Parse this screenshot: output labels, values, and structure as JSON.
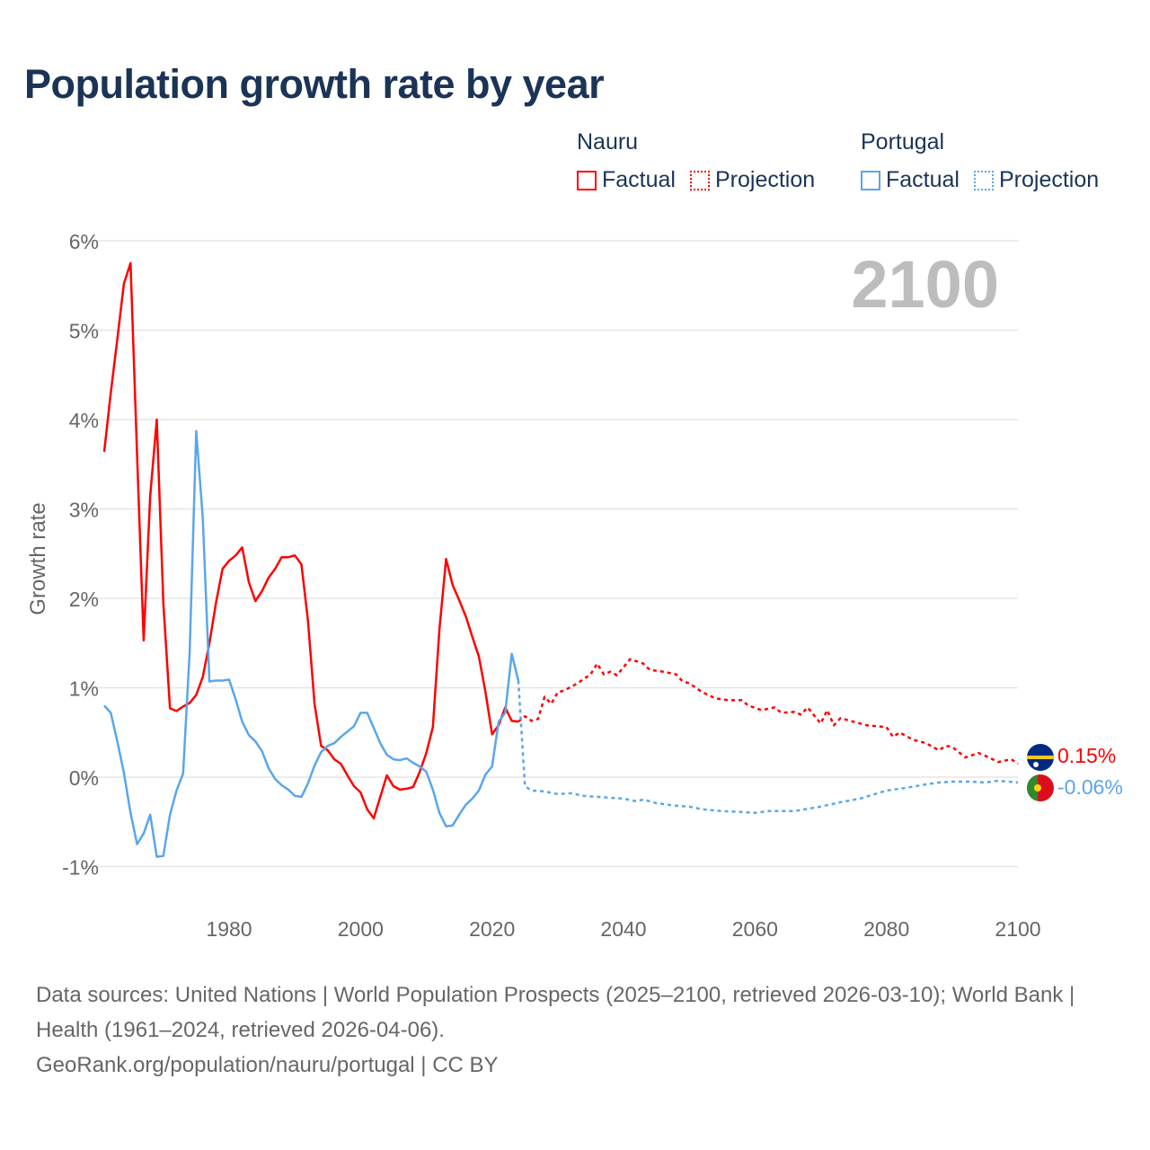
{
  "title": "Population growth rate by year",
  "legend": {
    "groups": [
      {
        "name": "Nauru",
        "factual": "Factual",
        "projection": "Projection",
        "color": "#ff0000"
      },
      {
        "name": "Portugal",
        "factual": "Factual",
        "projection": "Projection",
        "color": "#5aa6ea"
      }
    ]
  },
  "current_year": "2100",
  "end_labels": {
    "nauru": "0.15%",
    "portugal": "-0.06%"
  },
  "footer": {
    "sources": "Data sources: United Nations | World Population Prospects (2025–2100, retrieved 2026-03-10); World Bank | Health (1961–2024, retrieved 2026-04-06).",
    "link": "GeoRank.org/population/nauru/portugal | CC BY"
  },
  "chart_data": {
    "type": "line",
    "title": "Population growth rate by year",
    "xlabel": "",
    "ylabel": "Growth rate",
    "xlim": [
      1961,
      2100
    ],
    "ylim": [
      -1,
      6
    ],
    "xticks": [
      1980,
      2000,
      2020,
      2040,
      2060,
      2080,
      2100
    ],
    "yticks": [
      -1,
      0,
      1,
      2,
      3,
      4,
      5,
      6
    ],
    "ytick_labels": [
      "-1%",
      "0%",
      "1%",
      "2%",
      "3%",
      "4%",
      "5%",
      "6%"
    ],
    "xtick_labels": [
      "1980",
      "2000",
      "2020",
      "2040",
      "2060",
      "2080",
      "2100"
    ],
    "grid": true,
    "series": [
      {
        "name": "Nauru Factual",
        "color": "#ff0000",
        "style": "solid",
        "x0": 1961,
        "values": [
          3.64,
          4.3,
          4.9,
          5.52,
          5.75,
          3.6,
          1.53,
          3.15,
          4.0,
          1.95,
          0.77,
          0.74,
          0.79,
          0.83,
          0.92,
          1.12,
          1.5,
          1.95,
          2.33,
          2.42,
          2.48,
          2.57,
          2.18,
          1.97,
          2.08,
          2.23,
          2.33,
          2.46,
          2.46,
          2.48,
          2.38,
          1.75,
          0.82,
          0.35,
          0.3,
          0.2,
          0.15,
          0.02,
          -0.1,
          -0.17,
          -0.36,
          -0.46,
          -0.22,
          0.02,
          -0.1,
          -0.14,
          -0.13,
          -0.11,
          0.06,
          0.27,
          0.56,
          1.65,
          2.44,
          2.15,
          1.98,
          1.8,
          1.57,
          1.35,
          0.95,
          0.48,
          0.58,
          0.78,
          0.63,
          0.62
        ]
      },
      {
        "name": "Nauru Projection",
        "color": "#ff0000",
        "style": "dotted",
        "points": [
          [
            2024,
            0.62
          ],
          [
            2025,
            0.68
          ],
          [
            2026,
            0.63
          ],
          [
            2027,
            0.65
          ],
          [
            2028,
            0.9
          ],
          [
            2029,
            0.82
          ],
          [
            2030,
            0.95
          ],
          [
            2031,
            0.97
          ],
          [
            2033,
            1.05
          ],
          [
            2035,
            1.15
          ],
          [
            2036,
            1.27
          ],
          [
            2037,
            1.15
          ],
          [
            2038,
            1.18
          ],
          [
            2039,
            1.14
          ],
          [
            2041,
            1.32
          ],
          [
            2043,
            1.27
          ],
          [
            2044,
            1.2
          ],
          [
            2046,
            1.18
          ],
          [
            2048,
            1.15
          ],
          [
            2049,
            1.07
          ],
          [
            2050,
            1.05
          ],
          [
            2052,
            0.95
          ],
          [
            2054,
            0.88
          ],
          [
            2056,
            0.86
          ],
          [
            2058,
            0.86
          ],
          [
            2059,
            0.8
          ],
          [
            2061,
            0.75
          ],
          [
            2063,
            0.78
          ],
          [
            2064,
            0.72
          ],
          [
            2066,
            0.73
          ],
          [
            2067,
            0.7
          ],
          [
            2068,
            0.78
          ],
          [
            2070,
            0.6
          ],
          [
            2071,
            0.75
          ],
          [
            2072,
            0.58
          ],
          [
            2073,
            0.66
          ],
          [
            2075,
            0.62
          ],
          [
            2077,
            0.58
          ],
          [
            2080,
            0.56
          ],
          [
            2081,
            0.45
          ],
          [
            2082,
            0.5
          ],
          [
            2084,
            0.42
          ],
          [
            2086,
            0.38
          ],
          [
            2088,
            0.3
          ],
          [
            2089,
            0.35
          ],
          [
            2090,
            0.34
          ],
          [
            2092,
            0.22
          ],
          [
            2094,
            0.27
          ],
          [
            2095,
            0.24
          ],
          [
            2097,
            0.17
          ],
          [
            2099,
            0.2
          ],
          [
            2100,
            0.15
          ]
        ]
      },
      {
        "name": "Portugal Factual",
        "color": "#5aa6ea",
        "style": "solid",
        "x0": 1961,
        "values": [
          0.8,
          0.72,
          0.4,
          0.05,
          -0.4,
          -0.75,
          -0.63,
          -0.42,
          -0.89,
          -0.88,
          -0.42,
          -0.15,
          0.04,
          1.4,
          3.87,
          2.9,
          1.07,
          1.08,
          1.08,
          1.09,
          0.87,
          0.62,
          0.47,
          0.4,
          0.29,
          0.1,
          -0.02,
          -0.09,
          -0.14,
          -0.21,
          -0.22,
          -0.07,
          0.13,
          0.28,
          0.35,
          0.38,
          0.45,
          0.51,
          0.57,
          0.72,
          0.72,
          0.55,
          0.38,
          0.25,
          0.2,
          0.19,
          0.21,
          0.16,
          0.12,
          0.06,
          -0.14,
          -0.4,
          -0.55,
          -0.54,
          -0.42,
          -0.31,
          -0.24,
          -0.15,
          0.03,
          0.12,
          0.62,
          0.72,
          1.38,
          1.08
        ]
      },
      {
        "name": "Portugal Projection",
        "color": "#5aa6ea",
        "style": "dotted",
        "points": [
          [
            2024,
            1.08
          ],
          [
            2025,
            -0.1
          ],
          [
            2026,
            -0.15
          ],
          [
            2028,
            -0.16
          ],
          [
            2030,
            -0.19
          ],
          [
            2032,
            -0.18
          ],
          [
            2034,
            -0.21
          ],
          [
            2036,
            -0.22
          ],
          [
            2040,
            -0.24
          ],
          [
            2042,
            -0.27
          ],
          [
            2043,
            -0.25
          ],
          [
            2045,
            -0.29
          ],
          [
            2048,
            -0.32
          ],
          [
            2050,
            -0.33
          ],
          [
            2052,
            -0.36
          ],
          [
            2055,
            -0.38
          ],
          [
            2058,
            -0.39
          ],
          [
            2060,
            -0.4
          ],
          [
            2062,
            -0.38
          ],
          [
            2066,
            -0.38
          ],
          [
            2070,
            -0.33
          ],
          [
            2073,
            -0.28
          ],
          [
            2076,
            -0.24
          ],
          [
            2080,
            -0.15
          ],
          [
            2083,
            -0.12
          ],
          [
            2086,
            -0.08
          ],
          [
            2088,
            -0.06
          ],
          [
            2090,
            -0.05
          ],
          [
            2093,
            -0.05
          ],
          [
            2095,
            -0.06
          ],
          [
            2097,
            -0.04
          ],
          [
            2100,
            -0.06
          ]
        ]
      }
    ]
  }
}
